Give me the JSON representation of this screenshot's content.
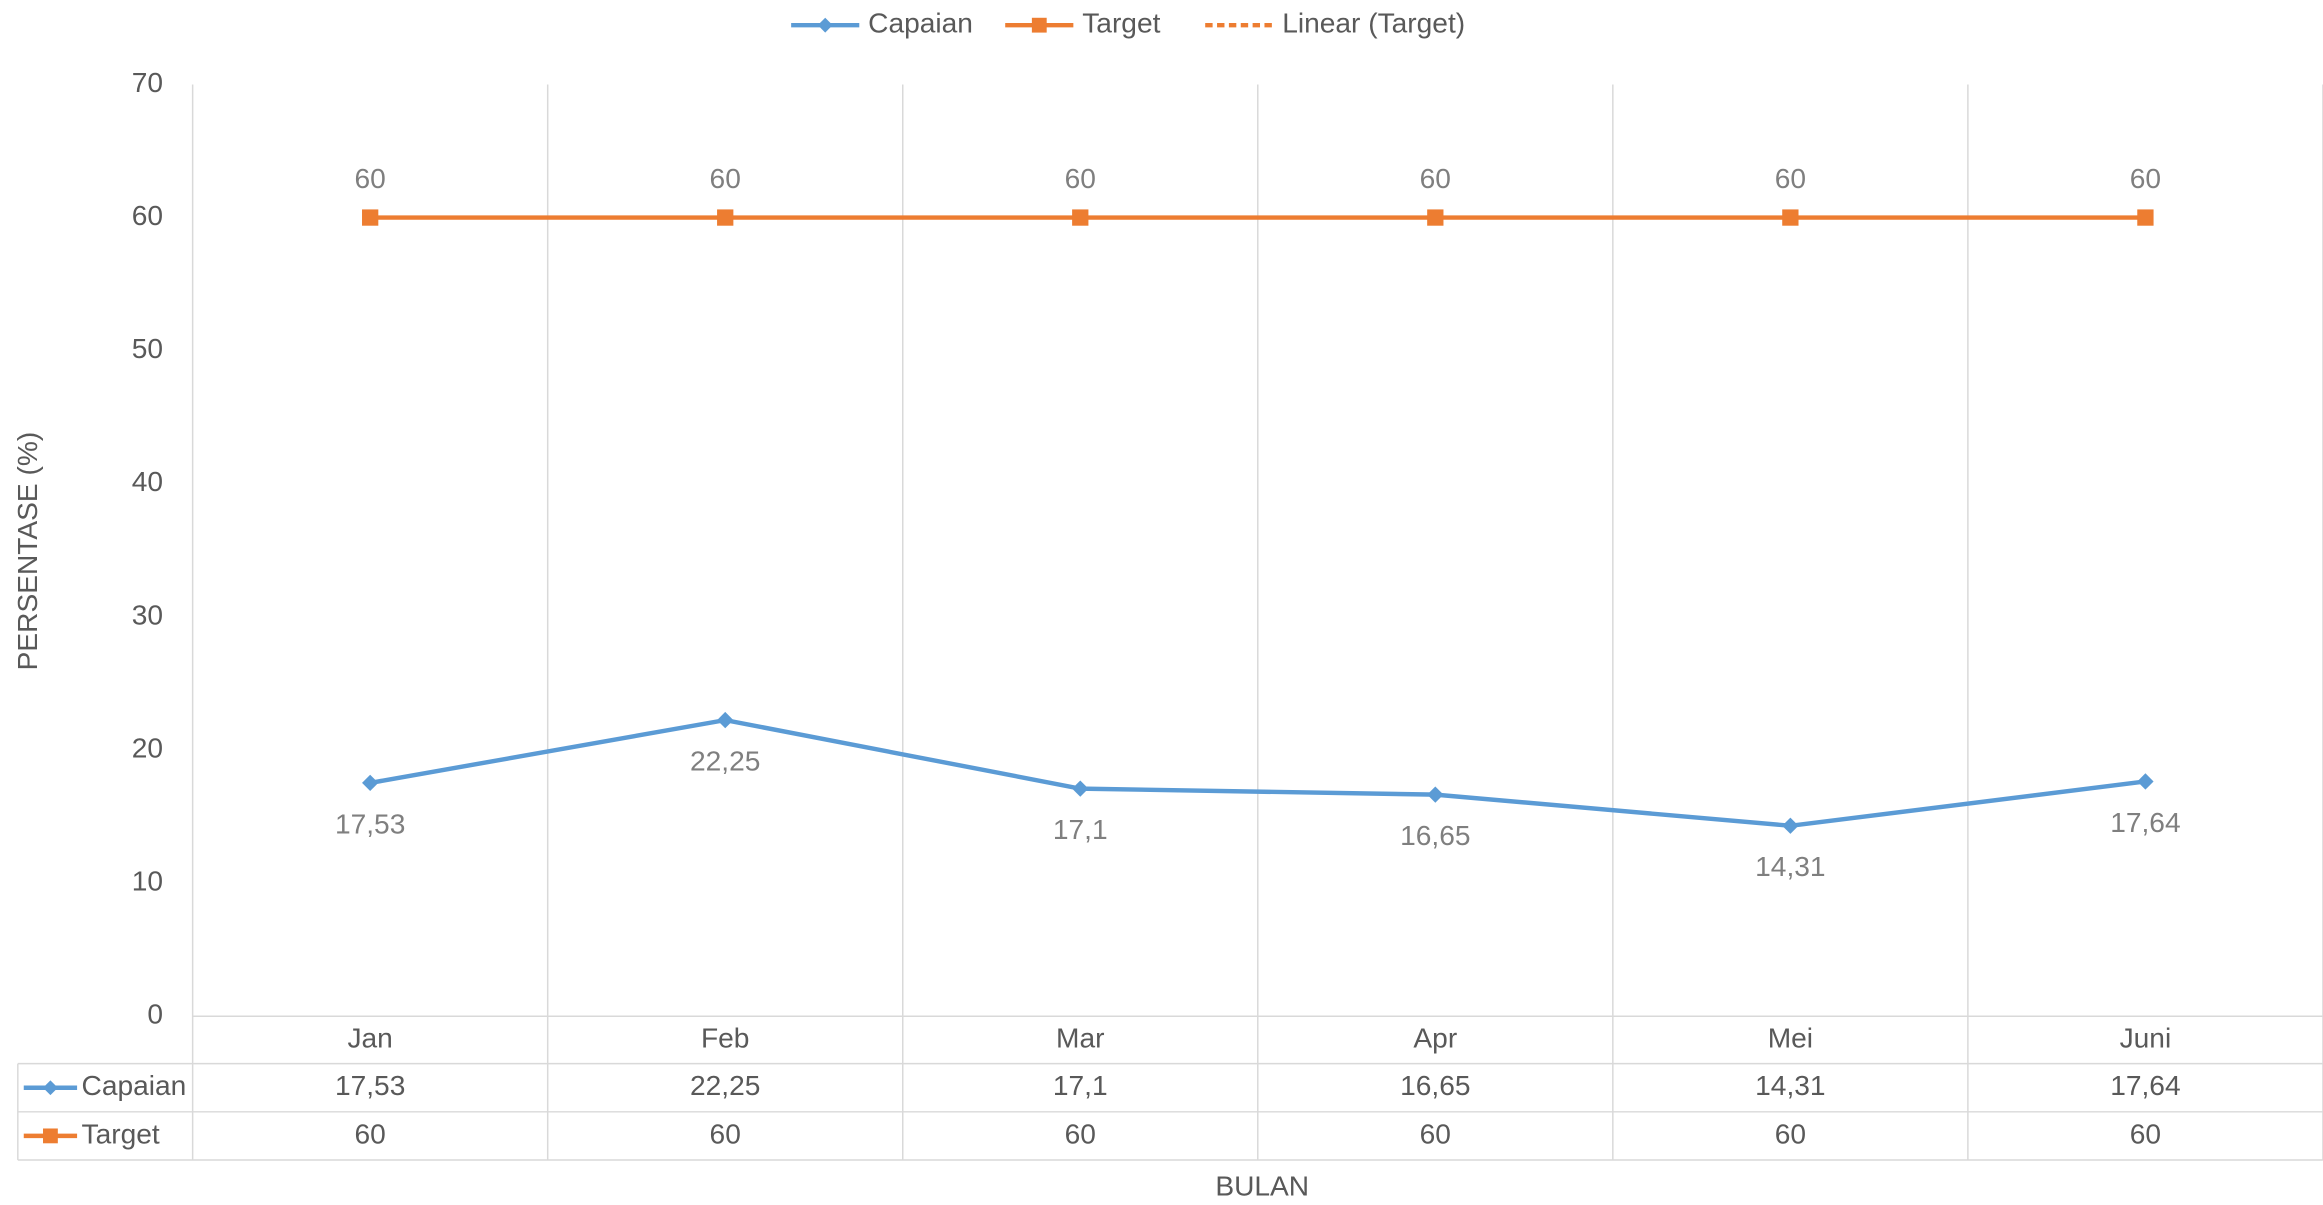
{
  "chart_data": {
    "type": "line",
    "categories": [
      "Jan",
      "Feb",
      "Mar",
      "Apr",
      "Mei",
      "Juni"
    ],
    "series": [
      {
        "name": "Capaian",
        "color": "#5b9bd5",
        "marker": "diamond",
        "values": [
          17.53,
          22.25,
          17.1,
          16.65,
          14.31,
          17.64
        ],
        "value_labels": [
          "17,53",
          "22,25",
          "17,1",
          "16,65",
          "14,31",
          "17,64"
        ],
        "label_position": "below",
        "table": true
      },
      {
        "name": "Target",
        "color": "#ed7d31",
        "marker": "square",
        "values": [
          60,
          60,
          60,
          60,
          60,
          60
        ],
        "label_position": "above",
        "table": true
      },
      {
        "name": "Linear (Target)",
        "color": "#ed7d31",
        "dashed": true,
        "values": [
          60,
          60,
          60,
          60,
          60,
          60
        ]
      }
    ],
    "xlabel": "BULAN",
    "ylabel": "PERSENTASE (%)",
    "ylim": [
      0,
      70
    ],
    "yticks": [
      0,
      10,
      20,
      30,
      40,
      50,
      60,
      70
    ],
    "grid": false,
    "legend": "top"
  }
}
